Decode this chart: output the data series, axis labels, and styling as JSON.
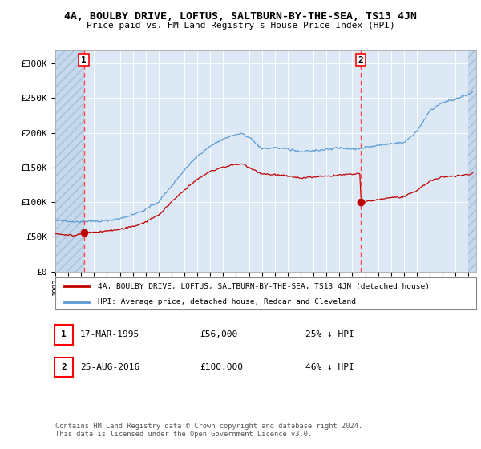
{
  "title": "4A, BOULBY DRIVE, LOFTUS, SALTBURN-BY-THE-SEA, TS13 4JN",
  "subtitle": "Price paid vs. HM Land Registry's House Price Index (HPI)",
  "sale1_price": 56000,
  "sale1_label": "17-MAR-1995",
  "sale1_pct": "25% ↓ HPI",
  "sale2_price": 100000,
  "sale2_label": "25-AUG-2016",
  "sale2_pct": "46% ↓ HPI",
  "hpi_color": "#5b9bd5",
  "price_color": "#c00000",
  "dashed_color": "#ff4444",
  "bg_color": "#dce9f5",
  "hatch_color": "#c5d8ee",
  "legend_label_price": "4A, BOULBY DRIVE, LOFTUS, SALTBURN-BY-THE-SEA, TS13 4JN (detached house)",
  "legend_label_hpi": "HPI: Average price, detached house, Redcar and Cleveland",
  "footer": "Contains HM Land Registry data © Crown copyright and database right 2024.\nThis data is licensed under the Open Government Licence v3.0.",
  "ylim": [
    0,
    320000
  ],
  "yticks": [
    0,
    50000,
    100000,
    150000,
    200000,
    250000,
    300000
  ],
  "ytick_labels": [
    "£0",
    "£50K",
    "£100K",
    "£150K",
    "£200K",
    "£250K",
    "£300K"
  ]
}
